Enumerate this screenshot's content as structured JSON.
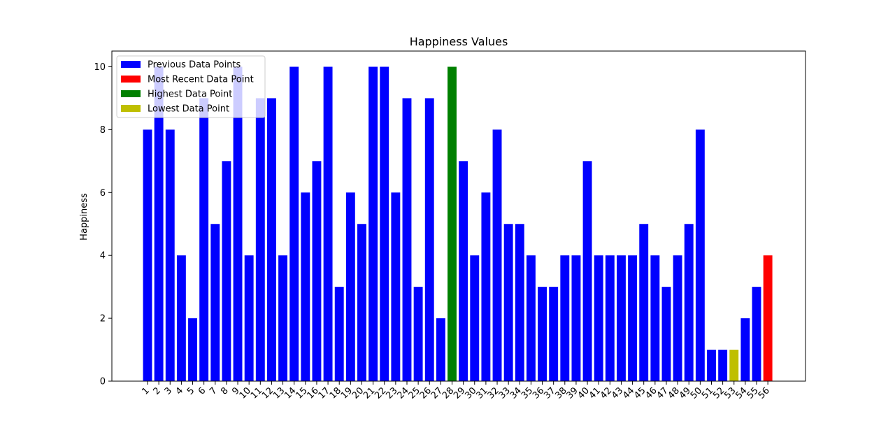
{
  "chart_data": {
    "type": "bar",
    "title": "Happiness Values",
    "xlabel": "",
    "ylabel": "Happiness",
    "ylim": [
      0,
      10.5
    ],
    "yticks": [
      0,
      2,
      4,
      6,
      8,
      10
    ],
    "grid": false,
    "legend_position": "top-left",
    "categories": [
      "1",
      "2",
      "3",
      "4",
      "5",
      "6",
      "7",
      "8",
      "9",
      "10",
      "11",
      "12",
      "13",
      "14",
      "15",
      "16",
      "17",
      "18",
      "19",
      "20",
      "21",
      "22",
      "23",
      "24",
      "25",
      "26",
      "27",
      "28",
      "29",
      "30",
      "31",
      "32",
      "33",
      "34",
      "35",
      "36",
      "37",
      "38",
      "39",
      "40",
      "41",
      "42",
      "43",
      "44",
      "45",
      "46",
      "47",
      "48",
      "49",
      "50",
      "51",
      "52",
      "53",
      "54",
      "55",
      "56"
    ],
    "values": [
      8,
      10,
      8,
      4,
      2,
      9,
      5,
      7,
      10,
      4,
      9,
      9,
      4,
      10,
      6,
      7,
      10,
      3,
      6,
      5,
      10,
      10,
      6,
      9,
      3,
      9,
      2,
      10,
      7,
      4,
      6,
      8,
      5,
      5,
      4,
      3,
      3,
      4,
      4,
      7,
      4,
      4,
      4,
      4,
      5,
      4,
      3,
      4,
      5,
      8,
      1,
      1,
      1,
      2,
      3,
      4
    ],
    "highlights": {
      "highest_index": 28,
      "lowest_index": 53,
      "most_recent_index": 56
    },
    "legend": [
      {
        "label": "Previous Data Points",
        "color": "#0000ff"
      },
      {
        "label": "Most Recent Data Point",
        "color": "#ff0000"
      },
      {
        "label": "Highest Data Point",
        "color": "#008000"
      },
      {
        "label": "Lowest Data Point",
        "color": "#bfbf00"
      }
    ],
    "colors": {
      "previous": "#0000ff",
      "most_recent": "#ff0000",
      "highest": "#008000",
      "lowest": "#bfbf00"
    }
  }
}
